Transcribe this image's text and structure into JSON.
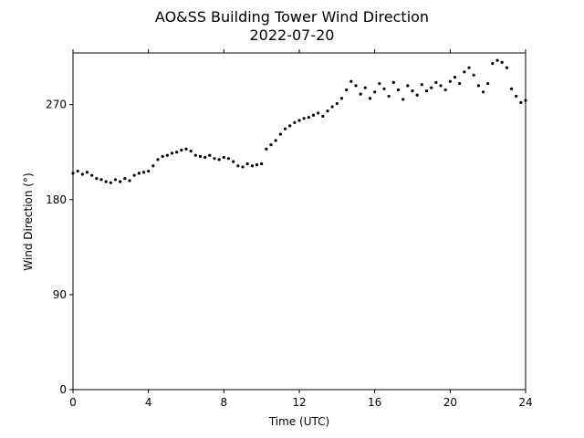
{
  "chart_data": {
    "type": "scatter",
    "title": "AO&SS Building Tower Wind Direction",
    "subtitle": "2022-07-20",
    "x_label": "Time (UTC)",
    "y_label": "Wind Direction (°)",
    "color": "#000000",
    "xlim": [
      0,
      24
    ],
    "xticks": [
      0,
      4,
      8,
      12,
      16,
      20,
      24
    ],
    "ylim": [
      0,
      319
    ],
    "yticks": [
      0,
      90,
      180,
      270
    ],
    "x": [
      0,
      0.25,
      0.5,
      0.75,
      1,
      1.25,
      1.5,
      1.75,
      2,
      2.25,
      2.5,
      2.75,
      3,
      3.25,
      3.5,
      3.75,
      4,
      4.25,
      4.5,
      4.75,
      5,
      5.25,
      5.5,
      5.75,
      6,
      6.25,
      6.5,
      6.75,
      7,
      7.25,
      7.5,
      7.75,
      8,
      8.25,
      8.5,
      8.75,
      9,
      9.25,
      9.5,
      9.75,
      10,
      10.25,
      10.5,
      10.75,
      11,
      11.25,
      11.5,
      11.75,
      12,
      12.25,
      12.5,
      12.75,
      13,
      13.25,
      13.5,
      13.75,
      14,
      14.25,
      14.5,
      14.75,
      15,
      15.25,
      15.5,
      15.75,
      16,
      16.25,
      16.5,
      16.75,
      17,
      17.25,
      17.5,
      17.75,
      18,
      18.25,
      18.5,
      18.75,
      19,
      19.25,
      19.5,
      19.75,
      20,
      20.25,
      20.5,
      20.75,
      21,
      21.25,
      21.5,
      21.75,
      22,
      22.25,
      22.5,
      22.75,
      23,
      23.25,
      23.5,
      23.75,
      24
    ],
    "values": [
      205,
      207,
      204,
      206,
      203,
      200,
      199,
      197,
      196,
      199,
      197,
      200,
      198,
      203,
      205,
      206,
      207,
      212,
      218,
      221,
      222,
      224,
      225,
      227,
      228,
      226,
      222,
      221,
      220,
      222,
      219,
      218,
      220,
      219,
      216,
      212,
      211,
      214,
      212,
      213,
      214,
      228,
      232,
      236,
      242,
      247,
      250,
      253,
      255,
      257,
      258,
      260,
      262,
      259,
      264,
      268,
      271,
      276,
      284,
      292,
      288,
      280,
      286,
      276,
      282,
      290,
      285,
      278,
      291,
      284,
      275,
      288,
      283,
      279,
      289,
      283,
      286,
      291,
      288,
      284,
      292,
      296,
      290,
      301,
      305,
      298,
      288,
      282,
      290,
      309,
      312,
      310,
      305,
      285,
      278,
      272,
      274
    ]
  }
}
